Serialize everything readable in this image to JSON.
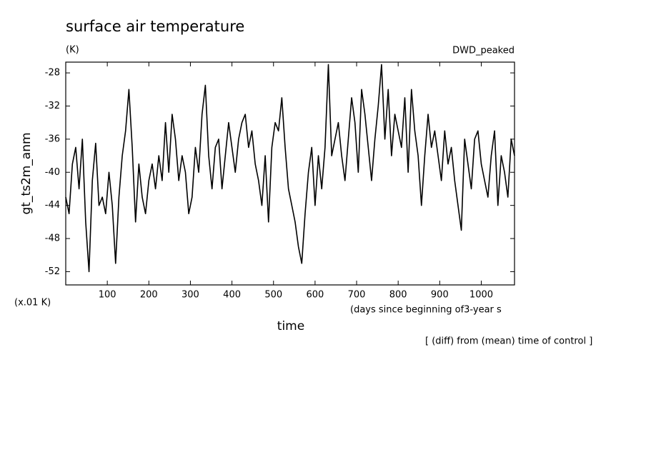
{
  "chart_data": {
    "type": "line",
    "title": "surface air temperature",
    "unit_label": "(K)",
    "experiment": "DWD_peaked",
    "ylabel": "gt_ts2m_anm",
    "scale_note": "(x.01 K)",
    "xaxis_note": "(days since beginning of3-year s",
    "xlabel": "time",
    "footer": "[ (diff) from (mean) time of control ]",
    "color": "#000000",
    "xlim": [
      0,
      1080
    ],
    "ylim": [
      -53.6,
      -26.7
    ],
    "xticks": [
      100,
      200,
      300,
      400,
      500,
      600,
      700,
      800,
      900,
      1000
    ],
    "yticks": [
      -52,
      -48,
      -44,
      -40,
      -36,
      -32,
      -28
    ],
    "grid": false,
    "x": [
      0,
      8,
      16,
      24,
      32,
      40,
      48,
      56,
      64,
      72,
      80,
      88,
      96,
      104,
      112,
      120,
      128,
      136,
      144,
      152,
      160,
      168,
      176,
      184,
      192,
      200,
      208,
      216,
      224,
      232,
      240,
      248,
      256,
      264,
      272,
      280,
      288,
      296,
      304,
      312,
      320,
      328,
      336,
      344,
      352,
      360,
      368,
      376,
      384,
      392,
      400,
      408,
      416,
      424,
      432,
      440,
      448,
      456,
      464,
      472,
      480,
      488,
      496,
      504,
      512,
      520,
      528,
      536,
      544,
      552,
      560,
      568,
      576,
      584,
      592,
      600,
      608,
      616,
      624,
      632,
      640,
      648,
      656,
      664,
      672,
      680,
      688,
      696,
      704,
      712,
      720,
      728,
      736,
      744,
      752,
      760,
      768,
      776,
      784,
      792,
      800,
      808,
      816,
      824,
      832,
      840,
      848,
      856,
      864,
      872,
      880,
      888,
      896,
      904,
      912,
      920,
      928,
      936,
      944,
      952,
      960,
      968,
      976,
      984,
      992,
      1000,
      1008,
      1016,
      1024,
      1032,
      1040,
      1048,
      1056,
      1064,
      1072,
      1080
    ],
    "values": [
      -43,
      -45,
      -39,
      -37,
      -42,
      -36,
      -46,
      -52,
      -41,
      -36.5,
      -44,
      -43,
      -45,
      -40,
      -44,
      -51,
      -43,
      -38,
      -35,
      -30,
      -37,
      -46,
      -39,
      -43,
      -45,
      -41,
      -39,
      -42,
      -38,
      -41,
      -34,
      -40,
      -33,
      -36,
      -41,
      -38,
      -40,
      -45,
      -43,
      -37,
      -40,
      -33,
      -29.5,
      -38,
      -42,
      -37,
      -36,
      -42,
      -38,
      -34,
      -37,
      -40,
      -36,
      -34,
      -33,
      -37,
      -35,
      -39,
      -41,
      -44,
      -38,
      -46,
      -37,
      -34,
      -35,
      -31,
      -37,
      -42,
      -44,
      -46,
      -49,
      -51,
      -45,
      -40,
      -37,
      -44,
      -38,
      -42,
      -37,
      -27,
      -38,
      -36,
      -34,
      -38,
      -41,
      -36,
      -31,
      -34,
      -40,
      -30,
      -33,
      -37,
      -41,
      -36,
      -32,
      -27,
      -36,
      -30,
      -38,
      -33,
      -35,
      -37,
      -31,
      -40,
      -30,
      -35,
      -38,
      -44,
      -38,
      -33,
      -37,
      -35,
      -38,
      -41,
      -35,
      -39,
      -37,
      -41,
      -44,
      -47,
      -36,
      -39,
      -42,
      -36,
      -35,
      -39,
      -41,
      -43,
      -38,
      -35,
      -44,
      -38,
      -40,
      -43,
      -36,
      -38
    ]
  }
}
